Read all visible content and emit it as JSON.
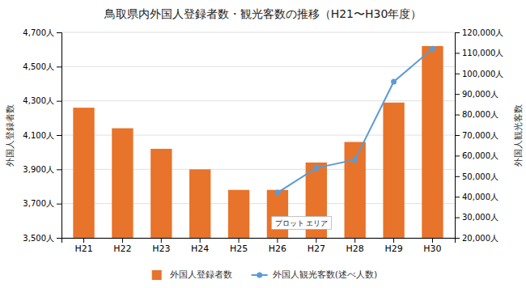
{
  "chart_data": {
    "type": "bar",
    "title": "鳥取県内外国人登録者数・観光客数の推移（H21〜H30年度）",
    "categories": [
      "H21",
      "H22",
      "H23",
      "H24",
      "H25",
      "H26",
      "H27",
      "H28",
      "H29",
      "H30"
    ],
    "series": [
      {
        "name": "外国人登録者数",
        "type": "bar",
        "color": "#E8732A",
        "values": [
          4260,
          4140,
          4020,
          3900,
          3780,
          3780,
          3940,
          4060,
          4290,
          4620
        ]
      },
      {
        "name": "外国人観光客数(述べ人数)",
        "type": "line",
        "axis": "y2",
        "color": "#5B9BD5",
        "marker": "circle",
        "line_style": "solid",
        "values": [
          null,
          null,
          null,
          null,
          null,
          42000,
          54000,
          58000,
          96000,
          112000
        ]
      }
    ],
    "ylabel": "外国人登録者数",
    "y2label": "外国人観光客数",
    "ylim": [
      3500,
      4700
    ],
    "yticks": [
      {
        "value": 3500,
        "label": "3,500人"
      },
      {
        "value": 3700,
        "label": "3,700人"
      },
      {
        "value": 3900,
        "label": "3,900人"
      },
      {
        "value": 4100,
        "label": "4,100人"
      },
      {
        "value": 4300,
        "label": "4,300人"
      },
      {
        "value": 4500,
        "label": "4,500人"
      },
      {
        "value": 4700,
        "label": "4,700人"
      }
    ],
    "y2lim": [
      20000,
      120000
    ],
    "y2ticks": [
      {
        "value": 20000,
        "label": "20,000人"
      },
      {
        "value": 30000,
        "label": "30,000人"
      },
      {
        "value": 40000,
        "label": "40,000人"
      },
      {
        "value": 50000,
        "label": "50,000人"
      },
      {
        "value": 60000,
        "label": "60,000人"
      },
      {
        "value": 70000,
        "label": "70,000人"
      },
      {
        "value": 80000,
        "label": "80,000人"
      },
      {
        "value": 90000,
        "label": "90,000人"
      },
      {
        "value": 100000,
        "label": "100,000人"
      },
      {
        "value": 110000,
        "label": "110,000人"
      },
      {
        "value": 120000,
        "label": "120,000人"
      }
    ],
    "annotation": "プロット エリア",
    "grid": true,
    "legend": "bottom"
  }
}
